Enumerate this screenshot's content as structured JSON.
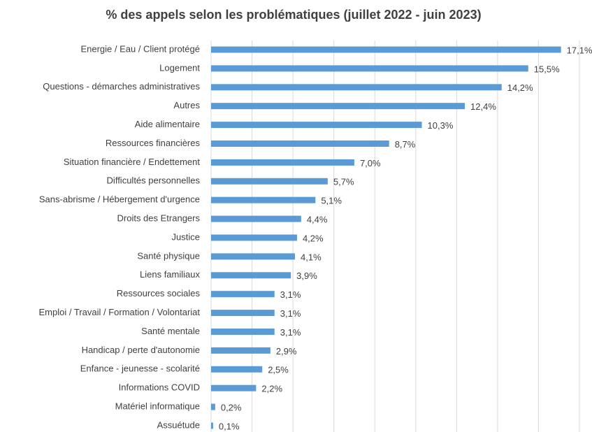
{
  "chart_data": {
    "type": "bar",
    "orientation": "horizontal",
    "title": "% des appels selon les problématiques (juillet 2022 - juin 2023)",
    "categories": [
      "Energie / Eau / Client protégé",
      "Logement",
      "Questions - démarches administratives",
      "Autres",
      "Aide alimentaire",
      "Ressources financières",
      "Situation financière / Endettement",
      "Difficultés personnelles",
      "Sans-abrisme / Hébergement d'urgence",
      "Droits des Etrangers",
      "Justice",
      "Santé physique",
      "Liens familiaux",
      "Ressources sociales",
      "Emploi / Travail / Formation / Volontariat",
      "Santé mentale",
      "Handicap / perte d'autonomie",
      "Enfance - jeunesse - scolarité",
      "Informations COVID",
      "Matériel informatique",
      "Assuétude"
    ],
    "values": [
      17.1,
      15.5,
      14.2,
      12.4,
      10.3,
      8.7,
      7.0,
      5.7,
      5.1,
      4.4,
      4.2,
      4.1,
      3.9,
      3.1,
      3.1,
      3.1,
      2.9,
      2.5,
      2.2,
      0.2,
      0.1
    ],
    "value_labels": [
      "17,1%",
      "15,5%",
      "14,2%",
      "12,4%",
      "10,3%",
      "8,7%",
      "7,0%",
      "5,7%",
      "5,1%",
      "4,4%",
      "4,2%",
      "4,1%",
      "3,9%",
      "3,1%",
      "3,1%",
      "3,1%",
      "2,9%",
      "2,5%",
      "2,2%",
      "0,2%",
      "0,1%"
    ],
    "color": "#5b9bd5",
    "xlim": [
      0,
      18
    ],
    "xticks": [
      0,
      2,
      4,
      6,
      8,
      10,
      12,
      14,
      16,
      18
    ],
    "grid": true
  }
}
